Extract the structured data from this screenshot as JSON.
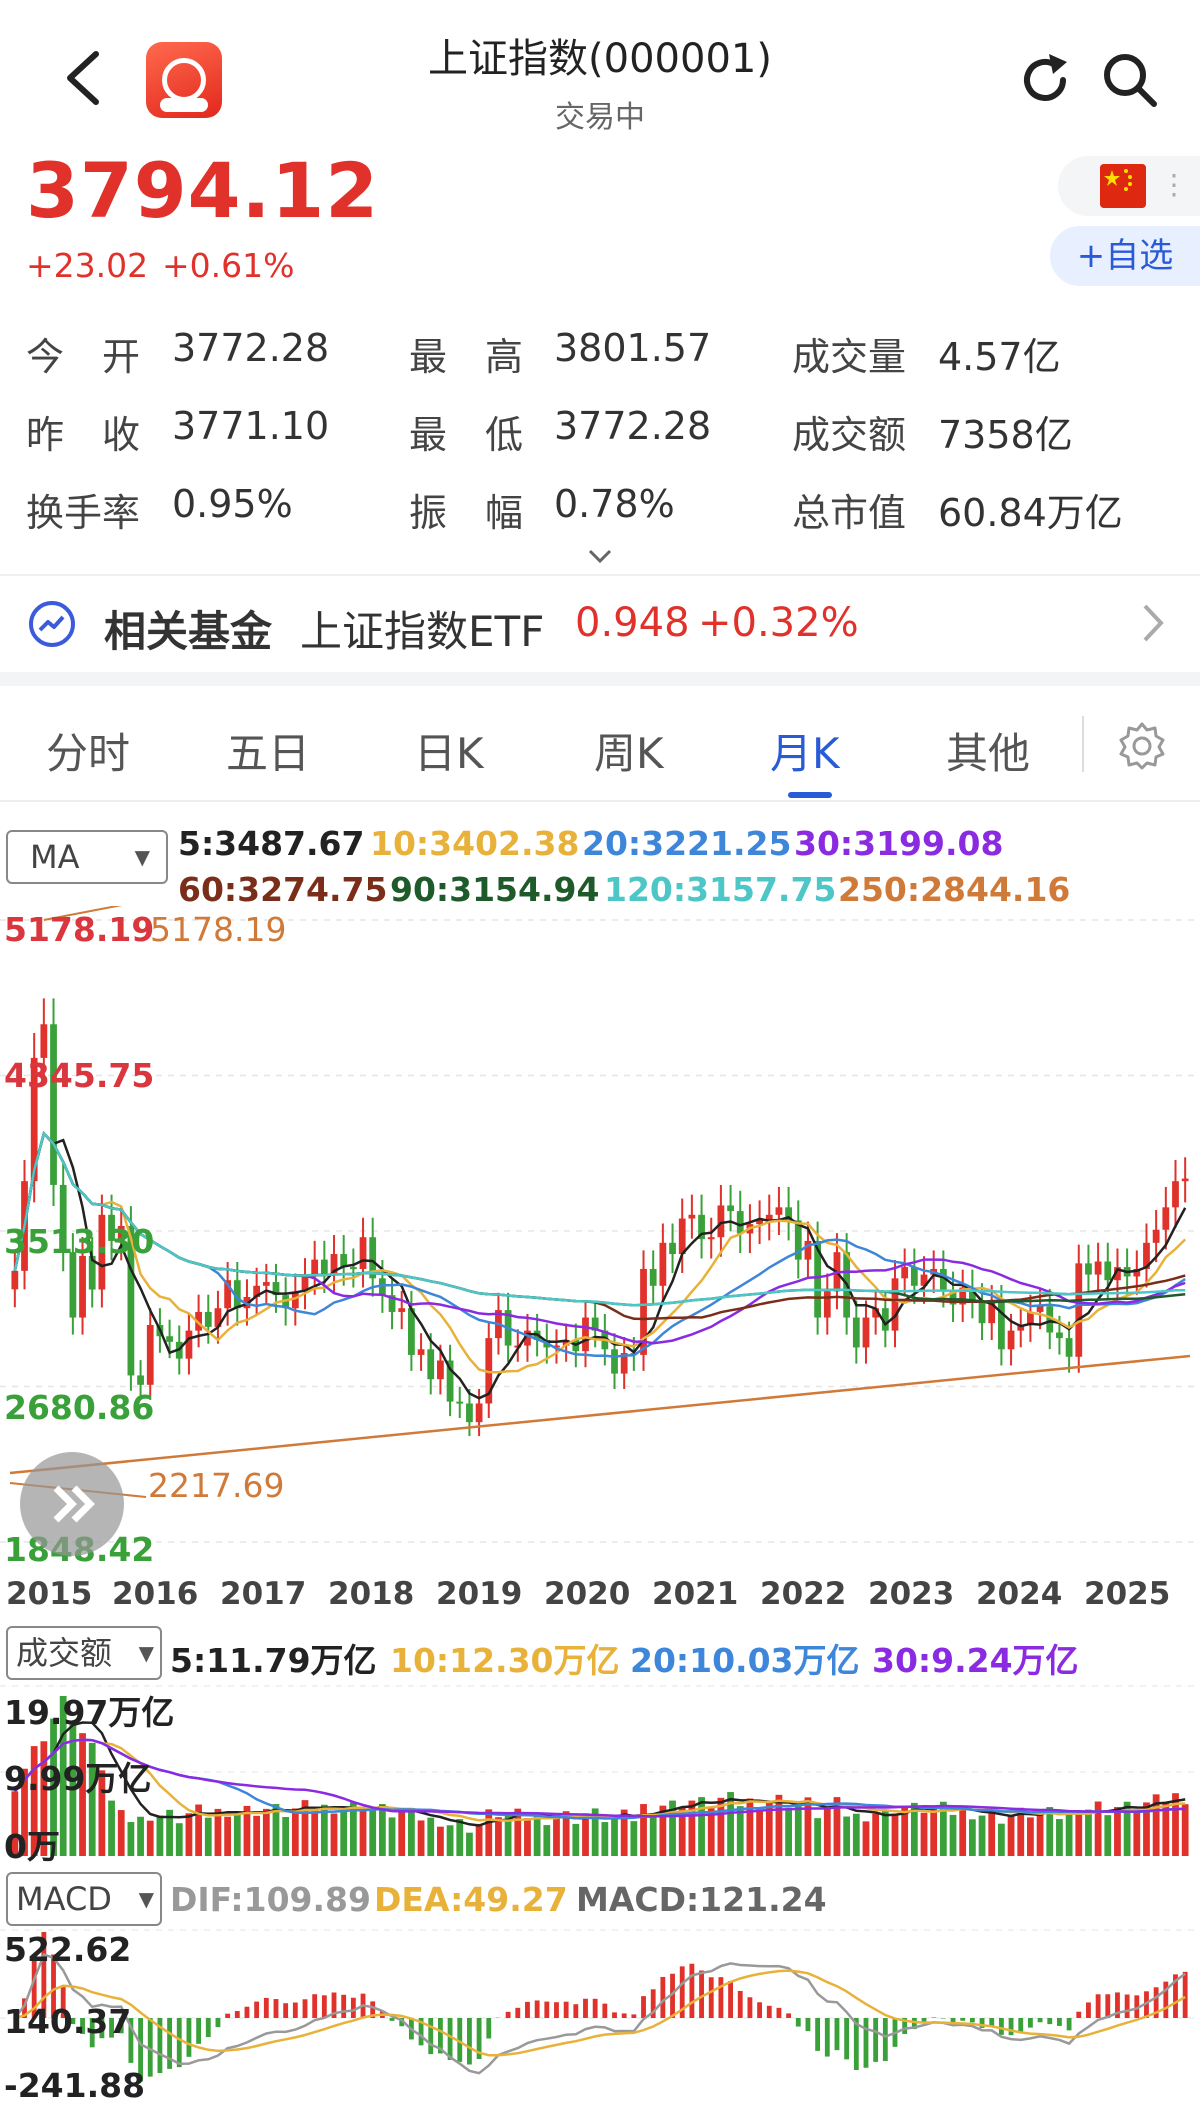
{
  "header": {
    "title": "上证指数(000001)",
    "status": "交易中",
    "logo_icon": "app-logo-icon",
    "back_icon": "chevron-left-icon",
    "refresh_icon": "refresh-icon",
    "search_icon": "search-icon"
  },
  "quote": {
    "price": "3794.12",
    "change": "+23.02",
    "change_pct": "+0.61%",
    "add_watch_label": "+自选",
    "flag_icon": "china-flag-icon",
    "up_color": "#e0312b"
  },
  "stats": [
    [
      {
        "label": "今　开",
        "value": "3772.28"
      },
      {
        "label": "最　高",
        "value": "3801.57"
      },
      {
        "label": "成交量",
        "value": "4.57亿"
      }
    ],
    [
      {
        "label": "昨　收",
        "value": "3771.10"
      },
      {
        "label": "最　低",
        "value": "3772.28"
      },
      {
        "label": "成交额",
        "value": "7358亿"
      }
    ],
    [
      {
        "label": "换手率",
        "value": "0.95%"
      },
      {
        "label": "振　幅",
        "value": "0.78%"
      },
      {
        "label": "总市值",
        "value": "60.84万亿"
      }
    ]
  ],
  "related_fund": {
    "label": "相关基金",
    "name": "上证指数ETF",
    "price": "0.948",
    "change_pct": "+0.32%"
  },
  "tabs": [
    {
      "label": "分时"
    },
    {
      "label": "五日"
    },
    {
      "label": "日K"
    },
    {
      "label": "周K"
    },
    {
      "label": "月K",
      "active": true
    },
    {
      "label": "其他"
    }
  ],
  "ma": {
    "selector": "MA",
    "items": [
      {
        "text": "5:3487.67",
        "color": "#222222"
      },
      {
        "text": "10:3402.38",
        "color": "#e8b23a"
      },
      {
        "text": "20:3221.25",
        "color": "#3d86d9"
      },
      {
        "text": "30:3199.08",
        "color": "#8a2be2"
      },
      {
        "text": "60:3274.75",
        "color": "#7a2e1a"
      },
      {
        "text": "90:3154.94",
        "color": "#1f5a2a"
      },
      {
        "text": "120:3157.75",
        "color": "#4cc6c6"
      },
      {
        "text": "250:2844.16",
        "color": "#d07a3a"
      }
    ]
  },
  "volume_ind": {
    "selector": "成交额",
    "items": [
      {
        "text": "5:11.79万亿",
        "color": "#222222"
      },
      {
        "text": "10:12.30万亿",
        "color": "#e8b23a"
      },
      {
        "text": "20:10.03万亿",
        "color": "#3d86d9"
      },
      {
        "text": "30:9.24万亿",
        "color": "#8a2be2"
      }
    ]
  },
  "macd_ind": {
    "selector": "MACD",
    "items": [
      {
        "text": "DIF:109.89",
        "color": "#999999"
      },
      {
        "text": "DEA:49.27",
        "color": "#e8b23a"
      },
      {
        "text": "MACD:121.24",
        "color": "#666666"
      }
    ]
  },
  "chart_data": [
    {
      "type": "candlestick",
      "period": "monthly",
      "x_labels": [
        "2015",
        "2016",
        "2017",
        "2018",
        "2019",
        "2020",
        "2021",
        "2022",
        "2023",
        "2024",
        "2025"
      ],
      "y_labels": [
        "5178.19",
        "4345.75",
        "3513.30",
        "2680.86",
        "1848.42"
      ],
      "ylim": [
        1848.42,
        5178.19
      ],
      "annotations": [
        {
          "text": "5178.19"
        },
        {
          "text": "2217.69"
        }
      ],
      "close_approx": [
        3300,
        3780,
        4440,
        4620,
        3760,
        3400,
        3050,
        3380,
        3200,
        3600,
        3460,
        3540,
        2740,
        2690,
        3010,
        2950,
        2920,
        2830,
        2980,
        3080,
        3000,
        3100,
        3250,
        3100,
        3160,
        3220,
        3240,
        3170,
        3100,
        3190,
        3270,
        3360,
        3280,
        3390,
        3320,
        3310,
        3480,
        3260,
        3170,
        3080,
        3100,
        2850,
        2880,
        2720,
        2820,
        2600,
        2590,
        2490,
        2590,
        2940,
        3090,
        2900,
        2900,
        2980,
        2930,
        2890,
        2900,
        2930,
        2870,
        3050,
        2980,
        2880,
        2750,
        2860,
        2850,
        3310,
        3220,
        3450,
        3390,
        3580,
        3600,
        3470,
        3480,
        3650,
        3620,
        3500,
        3550,
        3570,
        3600,
        3640,
        3570,
        3360,
        3460,
        3050,
        3190,
        3400,
        3050,
        2890,
        3050,
        3100,
        2980,
        3260,
        3320,
        3220,
        3280,
        3310,
        3200,
        3120,
        3210,
        3140,
        3020,
        3130,
        2880,
        2980,
        3010,
        3080,
        3110,
        2970,
        2940,
        2840,
        3340,
        3280,
        3350,
        3250,
        3320,
        3270,
        3310,
        3450,
        3520,
        3640,
        3780,
        3794
      ]
    },
    {
      "type": "bar",
      "title": "成交额",
      "y_labels": [
        "19.97万亿",
        "9.99万亿",
        "0万"
      ],
      "ylim": [
        0,
        19.97
      ]
    },
    {
      "type": "bar",
      "title": "MACD",
      "y_labels": [
        "522.62",
        "140.37",
        "-241.88"
      ],
      "ylim": [
        -241.88,
        522.62
      ]
    }
  ]
}
